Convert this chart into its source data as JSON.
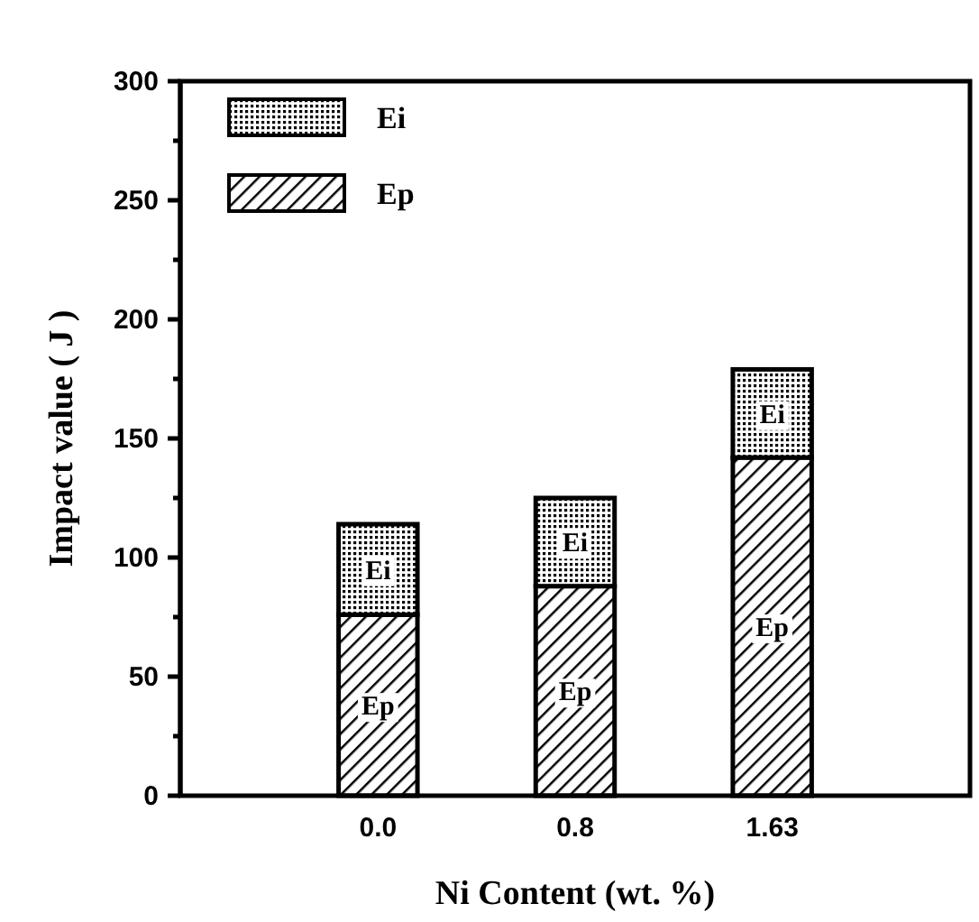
{
  "chart_data": {
    "type": "bar",
    "stacked": true,
    "xlabel": "Ni Content (wt. %)",
    "ylabel": "Impact value ( J )",
    "categories": [
      "0.0",
      "0.8",
      "1.63"
    ],
    "series": [
      {
        "name": "Ep",
        "color": "#000000",
        "values": [
          76,
          88,
          142
        ]
      },
      {
        "name": "Ei",
        "color": "#000000",
        "values": [
          38,
          37,
          37
        ]
      }
    ],
    "ylim": [
      0,
      300
    ],
    "yticks": [
      0,
      {
        "value": 25,
        "label": null
      },
      50,
      {
        "value": 75,
        "label": null
      },
      100,
      {
        "value": 125,
        "label": null
      },
      150,
      {
        "value": 175,
        "label": null
      },
      200,
      {
        "value": 225,
        "label": null
      },
      250,
      {
        "value": 275,
        "label": null
      },
      300
    ],
    "legend": "top left",
    "annotations": [
      "Ep",
      "Ei",
      "Ep",
      "Ei",
      "Ep",
      "Ei"
    ]
  }
}
